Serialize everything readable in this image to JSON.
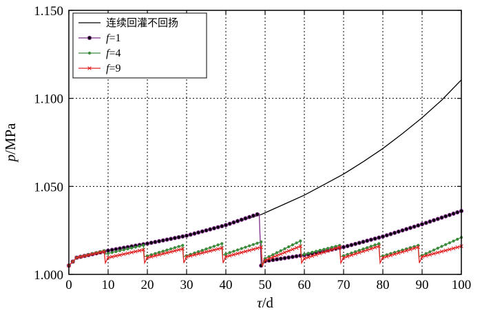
{
  "chart_data": {
    "type": "line",
    "xlabel_symbol": "τ",
    "xlabel_unit": "/d",
    "ylabel_symbol": "p",
    "ylabel_unit": "/MPa",
    "xlim": [
      0,
      100
    ],
    "ylim": [
      1.0,
      1.15
    ],
    "xticks": [
      0,
      10,
      20,
      30,
      40,
      50,
      60,
      70,
      80,
      90,
      100
    ],
    "yticks": [
      1.0,
      1.05,
      1.1,
      1.15
    ],
    "ytick_labels": [
      "1.000",
      "1.050",
      "1.100",
      "1.150"
    ],
    "grid": true,
    "legend_position": "top-left",
    "series": [
      {
        "name": "连续回灌不回扬",
        "color": "#000000",
        "marker": "none",
        "points": [
          [
            0,
            1.005
          ],
          [
            2,
            1.0095
          ],
          [
            10,
            1.0135
          ],
          [
            20,
            1.0175
          ],
          [
            30,
            1.022
          ],
          [
            40,
            1.028
          ],
          [
            49,
            1.034
          ],
          [
            50,
            1.035
          ],
          [
            55,
            1.04
          ],
          [
            60,
            1.045
          ],
          [
            65,
            1.051
          ],
          [
            70,
            1.057
          ],
          [
            75,
            1.064
          ],
          [
            80,
            1.0715
          ],
          [
            85,
            1.08
          ],
          [
            90,
            1.089
          ],
          [
            95,
            1.099
          ],
          [
            100,
            1.1105
          ]
        ]
      },
      {
        "name": "f=1",
        "name_symbol": "f",
        "name_value": "=1",
        "color": "#7b2c86",
        "marker": "circle",
        "points": [
          [
            0,
            1.005
          ],
          [
            2,
            1.0095
          ],
          [
            10,
            1.0135
          ],
          [
            20,
            1.0175
          ],
          [
            30,
            1.022
          ],
          [
            40,
            1.028
          ],
          [
            48.5,
            1.0345
          ],
          [
            49,
            1.005
          ],
          [
            50,
            1.0075
          ],
          [
            60,
            1.011
          ],
          [
            70,
            1.0155
          ],
          [
            80,
            1.0215
          ],
          [
            90,
            1.0285
          ],
          [
            100,
            1.036
          ]
        ]
      },
      {
        "name": "f=4",
        "name_symbol": "f",
        "name_value": "=4",
        "color": "#3c8a3c",
        "marker": "dot",
        "points": [
          [
            0,
            1.005
          ],
          [
            2,
            1.0095
          ],
          [
            9,
            1.0135
          ],
          [
            9.2,
            1.0115
          ],
          [
            19,
            1.0165
          ],
          [
            19.2,
            1.01
          ],
          [
            29,
            1.0165
          ],
          [
            29.2,
            1.01
          ],
          [
            39,
            1.0175
          ],
          [
            39.2,
            1.011
          ],
          [
            49,
            1.0185
          ],
          [
            49.2,
            1.005
          ],
          [
            50,
            1.009
          ],
          [
            59,
            1.019
          ],
          [
            59.2,
            1.011
          ],
          [
            69,
            1.0165
          ],
          [
            69.2,
            1.01
          ],
          [
            79,
            1.0175
          ],
          [
            79.2,
            1.01
          ],
          [
            89,
            1.0165
          ],
          [
            89.2,
            1.01
          ],
          [
            100,
            1.021
          ]
        ]
      },
      {
        "name": "f=9",
        "name_symbol": "f",
        "name_value": "=9",
        "color": "#e02020",
        "marker": "x",
        "points": [
          [
            0,
            1.005
          ],
          [
            2,
            1.0095
          ],
          [
            9,
            1.013
          ],
          [
            9.3,
            1.0065
          ],
          [
            10,
            1.0095
          ],
          [
            19,
            1.014
          ],
          [
            19.3,
            1.0065
          ],
          [
            20,
            1.0095
          ],
          [
            29,
            1.0145
          ],
          [
            29.3,
            1.0065
          ],
          [
            30,
            1.01
          ],
          [
            39,
            1.015
          ],
          [
            39.3,
            1.0065
          ],
          [
            40,
            1.01
          ],
          [
            49,
            1.0155
          ],
          [
            49.3,
            1.005
          ],
          [
            50,
            1.008
          ],
          [
            59,
            1.016
          ],
          [
            59.3,
            1.0065
          ],
          [
            60,
            1.009
          ],
          [
            69,
            1.0155
          ],
          [
            69.3,
            1.0065
          ],
          [
            70,
            1.0095
          ],
          [
            79,
            1.016
          ],
          [
            79.3,
            1.0065
          ],
          [
            80,
            1.0095
          ],
          [
            89,
            1.0155
          ],
          [
            89.3,
            1.0065
          ],
          [
            90,
            1.01
          ],
          [
            100,
            1.016
          ]
        ]
      }
    ]
  }
}
